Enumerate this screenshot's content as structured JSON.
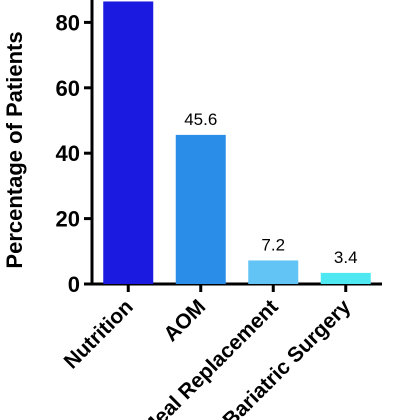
{
  "chart_data": {
    "type": "bar",
    "title": "",
    "xlabel": "",
    "ylabel": "Percentage of Patients",
    "ylim": [
      0,
      90
    ],
    "yticks": [
      0,
      20,
      40,
      60,
      80
    ],
    "grid": false,
    "categories": [
      "Nutrition",
      "AOM",
      "Meal Replacement",
      "Bariatric Surgery"
    ],
    "values": [
      86.4,
      45.6,
      7.2,
      3.4
    ],
    "data_labels": [
      "",
      "45.6",
      "7.2",
      "3.4"
    ],
    "colors": [
      "#1a1ae0",
      "#2a8ee8",
      "#62c4f5",
      "#4ee8f2"
    ]
  }
}
